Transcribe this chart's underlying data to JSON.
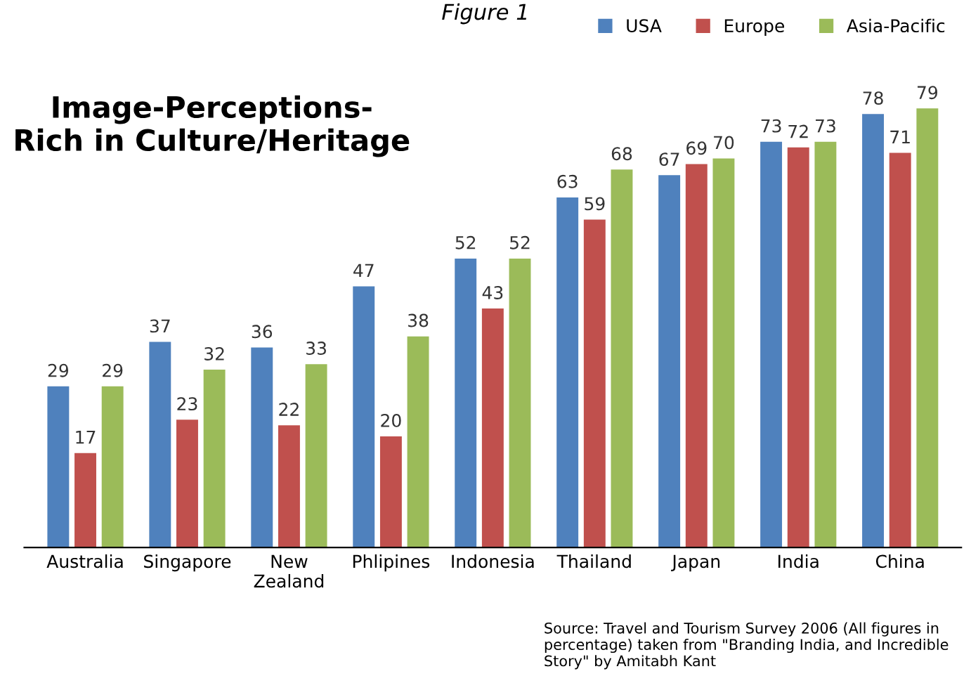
{
  "chart_data": {
    "type": "bar",
    "title": "Image-Perceptions-\nRich in Culture/Heritage",
    "subtitle": "Figure 1",
    "categories": [
      "Australia",
      "Singapore",
      "New\nZealand",
      "Phlipines",
      "Indonesia",
      "Thailand",
      "Japan",
      "India",
      "China"
    ],
    "series": [
      {
        "name": "USA",
        "color": "#4f81bd",
        "values": [
          29,
          37,
          36,
          47,
          52,
          63,
          67,
          73,
          78
        ]
      },
      {
        "name": "Europe",
        "color": "#c0504d",
        "values": [
          17,
          23,
          22,
          20,
          43,
          59,
          69,
          72,
          71
        ]
      },
      {
        "name": "Asia-Pacific",
        "color": "#9bbb59",
        "values": [
          29,
          32,
          33,
          38,
          52,
          68,
          70,
          73,
          79
        ]
      }
    ],
    "data_labels": true,
    "legend": "top right",
    "grid": false,
    "annotations": [
      "Source: Travel and Tourism Survey 2006 (All figures in percentage) taken from \"Branding India, and Incredible Story\" by Amitabh Kant"
    ]
  }
}
